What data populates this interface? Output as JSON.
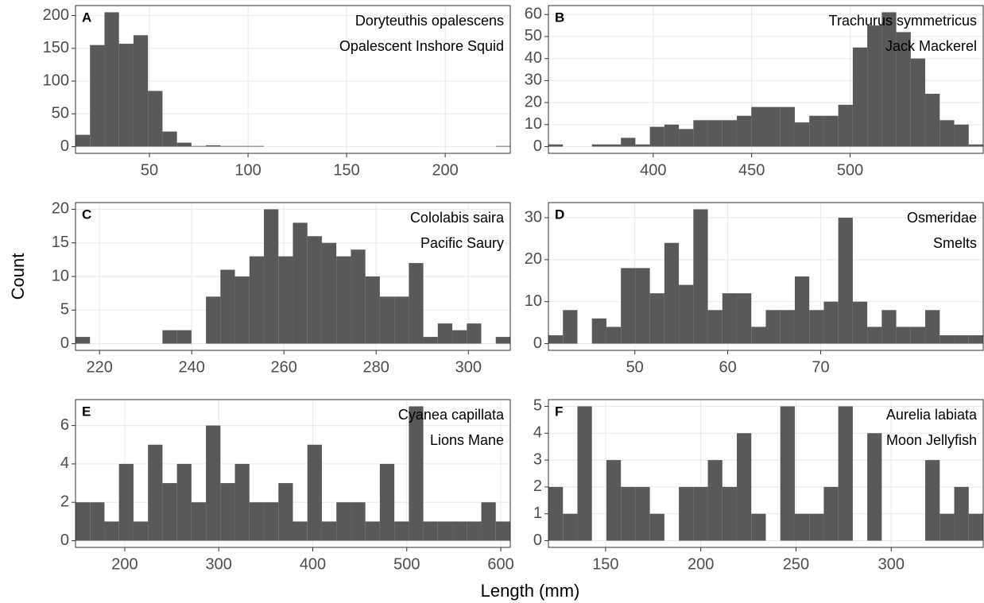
{
  "axis_labels": {
    "x": "Length (mm)",
    "y": "Count"
  },
  "chart_data": [
    {
      "type": "histogram",
      "panel_label": "A",
      "title": "Doryteuthis opalescens",
      "subtitle": "Opalescent Inshore Squid",
      "color": "#595959",
      "grid": true,
      "bins": [
        12.5,
        19.85,
        27.2,
        34.55,
        41.9,
        49.25,
        56.6,
        63.95,
        71.3,
        78.65,
        86,
        93.35,
        100.7,
        108.05,
        115.4,
        122.75,
        130.1,
        137.45,
        144.8,
        152.15,
        159.5,
        166.85,
        174.2,
        181.55,
        188.9,
        196.25,
        203.6,
        210.95,
        218.3,
        225.65,
        233
      ],
      "values": [
        18,
        155,
        205,
        157,
        170,
        85,
        23,
        6,
        1,
        2,
        1,
        1,
        1,
        0,
        0,
        0,
        0,
        0,
        0,
        0,
        0,
        0,
        0,
        0,
        0,
        0,
        0,
        0,
        0,
        1
      ],
      "xlim": [
        12.5,
        233
      ],
      "ylim": [
        -10.25,
        215.25
      ],
      "xticks": [
        50,
        100,
        150,
        200
      ],
      "yticks": [
        0,
        50,
        100,
        150,
        200
      ]
    },
    {
      "type": "histogram",
      "panel_label": "B",
      "title": "Trachurus symmetricus",
      "subtitle": "Jack Mackerel",
      "color": "#595959",
      "grid": true,
      "bins": [
        346.8,
        354.16,
        361.52,
        368.88,
        376.24,
        383.6,
        390.96,
        398.32,
        405.68,
        413.04,
        420.4,
        427.76,
        435.12,
        442.48,
        449.84,
        457.2,
        464.56,
        471.92,
        479.28,
        486.64,
        494,
        501.36,
        508.72,
        516.08,
        523.44,
        530.8,
        538.16,
        545.52,
        552.88,
        560.24,
        567.6
      ],
      "values": [
        1,
        0,
        0,
        1,
        1,
        4,
        1,
        9,
        10,
        8,
        12,
        12,
        12,
        14,
        18,
        18,
        18,
        11,
        14,
        14,
        19,
        45,
        55,
        61,
        52,
        40,
        24,
        12,
        10,
        1
      ],
      "xlim": [
        346.8,
        567.6
      ],
      "ylim": [
        -3.05,
        64.05
      ],
      "xticks": [
        400,
        450,
        500
      ],
      "yticks": [
        0,
        10,
        20,
        30,
        40,
        50,
        60
      ]
    },
    {
      "type": "histogram",
      "panel_label": "C",
      "title": "Cololabis saira",
      "subtitle": "Pacific Saury",
      "color": "#595959",
      "grid": true,
      "bins": [
        214.8,
        217.94,
        221.09,
        224.23,
        227.37,
        230.52,
        233.66,
        236.8,
        239.94,
        243.09,
        246.23,
        249.37,
        252.52,
        255.66,
        258.8,
        261.94,
        265.09,
        268.23,
        271.37,
        274.52,
        277.66,
        280.8,
        283.94,
        287.09,
        290.23,
        293.37,
        296.52,
        299.66,
        302.8,
        305.94,
        309.09
      ],
      "values": [
        1,
        0,
        0,
        0,
        0,
        0,
        2,
        2,
        0,
        7,
        11,
        10,
        13,
        20,
        13,
        18,
        16,
        15,
        13,
        14,
        10,
        7,
        7,
        12,
        1,
        3,
        2,
        3,
        0,
        1
      ],
      "xlim": [
        214.8,
        309.09
      ],
      "ylim": [
        -1,
        21
      ],
      "xticks": [
        220,
        240,
        260,
        280,
        300
      ],
      "yticks": [
        0,
        5,
        10,
        15,
        20
      ]
    },
    {
      "type": "histogram",
      "panel_label": "D",
      "title": "Osmeridae",
      "subtitle": "Smelts",
      "color": "#595959",
      "grid": true,
      "bins": [
        40.7,
        42.26,
        43.82,
        45.38,
        46.94,
        48.5,
        50.06,
        51.62,
        53.18,
        54.74,
        56.3,
        57.86,
        59.42,
        60.98,
        62.54,
        64.1,
        65.66,
        67.22,
        68.78,
        70.34,
        71.9,
        73.46,
        75.02,
        76.58,
        78.14,
        79.7,
        81.26,
        82.82,
        84.38,
        85.94,
        87.5
      ],
      "values": [
        2,
        8,
        0,
        6,
        4,
        18,
        18,
        12,
        24,
        14,
        32,
        8,
        12,
        12,
        4,
        8,
        8,
        16,
        8,
        10,
        30,
        10,
        4,
        8,
        4,
        4,
        8,
        2,
        2,
        2
      ],
      "xlim": [
        40.7,
        87.5
      ],
      "ylim": [
        -1.6,
        33.6
      ],
      "xticks": [
        50,
        60,
        70
      ],
      "yticks": [
        0,
        10,
        20,
        30
      ]
    },
    {
      "type": "histogram",
      "panel_label": "E",
      "title": "Cyanea capillata",
      "subtitle": "Lions Mane",
      "color": "#595959",
      "grid": true,
      "bins": [
        147.6,
        163.02,
        178.43,
        193.85,
        209.27,
        224.68,
        240.1,
        255.52,
        270.93,
        286.35,
        301.77,
        317.18,
        332.6,
        348.02,
        363.43,
        378.85,
        394.27,
        409.68,
        425.1,
        440.52,
        455.93,
        471.35,
        486.77,
        502.18,
        517.6,
        533.02,
        548.43,
        563.85,
        579.27,
        594.68,
        610.1
      ],
      "values": [
        2,
        2,
        1,
        4,
        1,
        5,
        3,
        4,
        2,
        6,
        3,
        4,
        2,
        2,
        3,
        1,
        5,
        1,
        2,
        2,
        1,
        4,
        1,
        7,
        1,
        1,
        1,
        1,
        2,
        1
      ],
      "xlim": [
        147.6,
        610.1
      ],
      "ylim": [
        -0.35,
        7.35
      ],
      "xticks": [
        200,
        300,
        400,
        500,
        600
      ],
      "yticks": [
        0,
        2,
        4,
        6
      ]
    },
    {
      "type": "histogram",
      "panel_label": "F",
      "title": "Aurelia labiata",
      "subtitle": "Moon Jellyfish",
      "color": "#595959",
      "grid": true,
      "bins": [
        120,
        127.61,
        135.22,
        142.83,
        150.44,
        158.05,
        165.66,
        173.27,
        180.88,
        188.49,
        196.1,
        203.71,
        211.32,
        218.93,
        226.54,
        234.15,
        241.76,
        249.37,
        256.98,
        264.59,
        272.2,
        279.81,
        287.42,
        295.03,
        302.64,
        310.25,
        317.86,
        325.47,
        333.08,
        340.69,
        348.3
      ],
      "values": [
        2,
        1,
        5,
        0,
        3,
        2,
        2,
        1,
        0,
        2,
        2,
        3,
        2,
        4,
        1,
        0,
        5,
        1,
        1,
        2,
        5,
        0,
        4,
        0,
        0,
        0,
        3,
        1,
        2,
        1
      ],
      "xlim": [
        120,
        348.3
      ],
      "ylim": [
        -0.25,
        5.25
      ],
      "xticks": [
        150,
        200,
        250,
        300
      ],
      "yticks": [
        0,
        1,
        2,
        3,
        4,
        5
      ]
    }
  ]
}
